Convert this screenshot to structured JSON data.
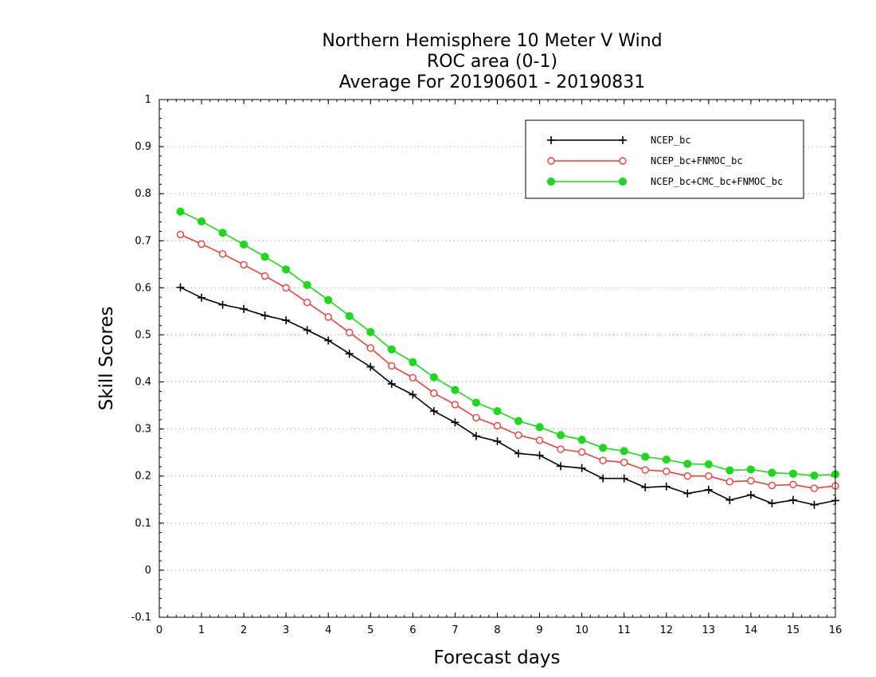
{
  "chart_data": {
    "type": "line",
    "title_lines": [
      "Northern Hemisphere 10 Meter V Wind",
      "ROC area (0-1)",
      "Average For 20190601 - 20190831"
    ],
    "xlabel": "Forecast days",
    "ylabel": "Skill Scores",
    "xlim": [
      0,
      16
    ],
    "ylim": [
      -0.1,
      1
    ],
    "x_ticks": [
      0,
      1,
      2,
      3,
      4,
      5,
      6,
      7,
      8,
      9,
      10,
      11,
      12,
      13,
      14,
      15,
      16
    ],
    "y_ticks": [
      -0.1,
      0,
      0.1,
      0.2,
      0.3,
      0.4,
      0.5,
      0.6,
      0.7,
      0.8,
      0.9,
      1
    ],
    "y_tick_labels": [
      "-0.1",
      "0",
      "0.1",
      "0.2",
      "0.3",
      "0.4",
      "0.5",
      "0.6",
      "0.7",
      "0.8",
      "0.9",
      "1"
    ],
    "grid": "horizontal dotted",
    "legend_position": "top-right",
    "x": [
      0.5,
      1,
      1.5,
      2,
      2.5,
      3,
      3.5,
      4,
      4.5,
      5,
      5.5,
      6,
      6.5,
      7,
      7.5,
      8,
      8.5,
      9,
      9.5,
      10,
      10.5,
      11,
      11.5,
      12,
      12.5,
      13,
      13.5,
      14,
      14.5,
      15,
      15.5,
      16
    ],
    "series": [
      {
        "name": "NCEP_bc",
        "color": "#000000",
        "marker": "plus",
        "values": [
          0.601,
          0.579,
          0.564,
          0.555,
          0.541,
          0.531,
          0.51,
          0.488,
          0.46,
          0.432,
          0.396,
          0.373,
          0.338,
          0.314,
          0.285,
          0.274,
          0.248,
          0.244,
          0.221,
          0.217,
          0.195,
          0.195,
          0.176,
          0.178,
          0.163,
          0.171,
          0.149,
          0.16,
          0.142,
          0.149,
          0.139,
          0.148
        ]
      },
      {
        "name": "NCEP_bc+FNMOC_bc",
        "color": "#e8413c",
        "marker": "open-circle",
        "values": [
          0.713,
          0.693,
          0.672,
          0.649,
          0.625,
          0.6,
          0.569,
          0.538,
          0.505,
          0.472,
          0.434,
          0.409,
          0.376,
          0.352,
          0.324,
          0.307,
          0.287,
          0.276,
          0.257,
          0.251,
          0.233,
          0.229,
          0.213,
          0.21,
          0.2,
          0.2,
          0.188,
          0.19,
          0.18,
          0.182,
          0.174,
          0.179
        ]
      },
      {
        "name": "NCEP_bc+CMC_bc+FNMOC_bc",
        "color": "#1ed71e",
        "marker": "filled-circle",
        "values": [
          0.762,
          0.741,
          0.717,
          0.692,
          0.666,
          0.639,
          0.606,
          0.574,
          0.54,
          0.506,
          0.469,
          0.442,
          0.41,
          0.383,
          0.356,
          0.338,
          0.317,
          0.304,
          0.287,
          0.277,
          0.26,
          0.253,
          0.241,
          0.235,
          0.226,
          0.225,
          0.212,
          0.214,
          0.207,
          0.205,
          0.201,
          0.204
        ]
      }
    ]
  }
}
